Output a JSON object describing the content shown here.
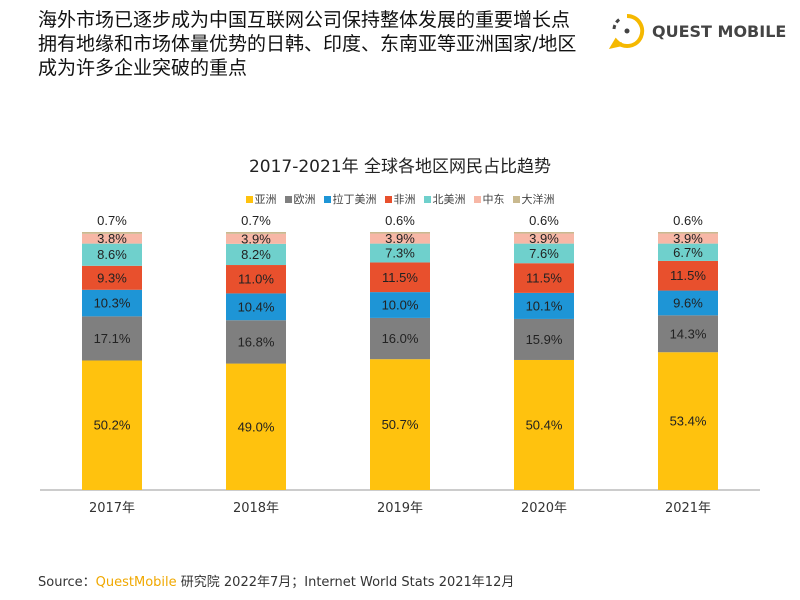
{
  "header": {
    "lines": [
      "海外市场已逐步成为中国互联网公司保持整体发展的重要增长点",
      "拥有地缘和市场体量优势的日韩、印度、东南亚等亚洲国家/地区",
      "成为许多企业突破的重点"
    ]
  },
  "logo": {
    "text": "QUEST MOBILE"
  },
  "chart_data": {
    "type": "bar",
    "stacked": true,
    "title": "2017-2021年 全球各地区网民占比趋势",
    "categories": [
      "2017年",
      "2018年",
      "2019年",
      "2020年",
      "2021年"
    ],
    "ylim": [
      0,
      100
    ],
    "legend_position": "top",
    "series": [
      {
        "name": "亚洲",
        "color": "#FFC20E",
        "values": [
          50.2,
          49.0,
          50.7,
          50.4,
          53.4
        ]
      },
      {
        "name": "欧洲",
        "color": "#7F7F7F",
        "values": [
          17.1,
          16.8,
          16.0,
          15.9,
          14.3
        ]
      },
      {
        "name": "拉丁美洲",
        "color": "#1E95D6",
        "values": [
          10.3,
          10.4,
          10.0,
          10.1,
          9.6
        ]
      },
      {
        "name": "非洲",
        "color": "#E8502D",
        "values": [
          9.3,
          11.0,
          11.5,
          11.5,
          11.5
        ]
      },
      {
        "name": "北美洲",
        "color": "#6FD0CC",
        "values": [
          8.6,
          8.2,
          7.3,
          7.6,
          6.7
        ]
      },
      {
        "name": "中东",
        "color": "#F7B7A6",
        "values": [
          3.8,
          3.9,
          3.9,
          3.9,
          3.9
        ]
      },
      {
        "name": "大洋洲",
        "color": "#C9B98F",
        "values": [
          0.7,
          0.7,
          0.6,
          0.6,
          0.6
        ]
      }
    ]
  },
  "source": {
    "prefix": "Source：",
    "brand": "QuestMobile",
    "rest": " 研究院 2022年7月；Internet World Stats 2021年12月"
  }
}
